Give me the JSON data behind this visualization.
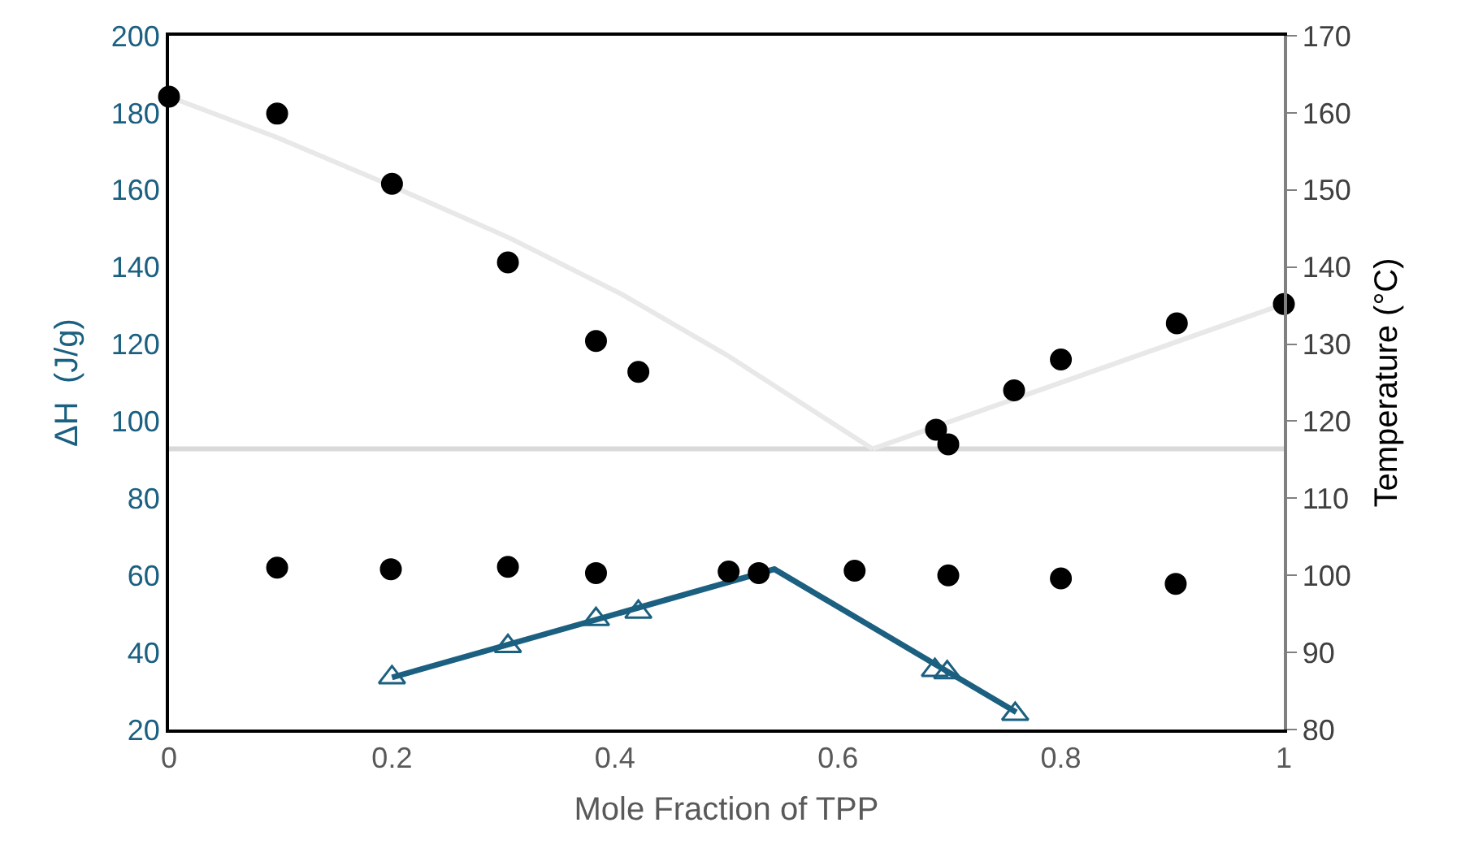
{
  "chart_data": {
    "type": "scatter",
    "xlabel": "Mole Fraction of TPP",
    "ylabel": "ΔH  (J/g)",
    "y2label": "Temperature (°C)",
    "xlim": [
      0,
      1
    ],
    "xticks": [
      0,
      0.2,
      0.4,
      0.6,
      0.8,
      1
    ],
    "ylim": [
      20,
      200
    ],
    "yticks": [
      20,
      40,
      60,
      80,
      100,
      120,
      140,
      160,
      180,
      200
    ],
    "y2lim": [
      80,
      170
    ],
    "y2ticks": [
      80,
      90,
      100,
      110,
      120,
      130,
      140,
      150,
      160,
      170
    ],
    "grid": false,
    "ref_lines": [
      {
        "axis": "y2",
        "value": 116.4,
        "color": "#d9d9d9"
      }
    ],
    "series": [
      {
        "type": "line",
        "axis": "y2",
        "color": "#e8e8e8",
        "marker": "none",
        "x": [
          0,
          0.097,
          0.2,
          0.305,
          0.407,
          0.5,
          0.631
        ],
        "values": [
          162.1,
          156.8,
          150.5,
          143.8,
          136.4,
          128.6,
          116.4
        ]
      },
      {
        "type": "line",
        "axis": "y2",
        "color": "#e8e8e8",
        "marker": "none",
        "x": [
          0.631,
          1
        ],
        "values": [
          116.4,
          135.2
        ]
      },
      {
        "type": "line",
        "axis": "y",
        "color": "#1b6080",
        "marker": "none",
        "x": [
          0.2,
          0.543,
          0.76
        ],
        "values": [
          33.5,
          61.6,
          24.5
        ]
      },
      {
        "axis": "y",
        "color": "#1b6080",
        "marker": "triangle",
        "x": [
          0.2,
          0.304,
          0.383,
          0.421,
          0.687,
          0.698,
          0.759
        ],
        "values": [
          33.5,
          41.6,
          48.6,
          50.5,
          35.4,
          34.8,
          24.0
        ]
      },
      {
        "axis": "y2",
        "color": "#000000",
        "marker": "circle",
        "x": [
          0,
          0.097,
          0.2,
          0.304,
          0.383,
          0.421,
          0.688,
          0.699,
          0.758,
          0.8,
          0.904,
          1
        ],
        "values": [
          162.1,
          159.9,
          150.8,
          140.6,
          130.4,
          126.4,
          118.9,
          117.0,
          124.0,
          128.0,
          132.7,
          135.2
        ]
      },
      {
        "axis": "y2",
        "color": "#000000",
        "marker": "circle",
        "x": [
          0.097,
          0.199,
          0.304,
          0.383,
          0.502,
          0.529,
          0.615,
          0.699,
          0.8,
          0.903
        ],
        "values": [
          101.0,
          100.8,
          101.1,
          100.3,
          100.5,
          100.3,
          100.6,
          100.0,
          99.6,
          98.9
        ]
      }
    ]
  }
}
